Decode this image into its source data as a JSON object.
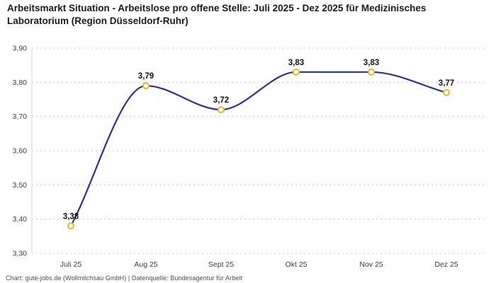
{
  "footer": {
    "text": "Chart: gute-jobs.de (Wollmilchsau GmbH) | Datenquelle: Bundesagentur für Arbeit"
  },
  "chart_data": {
    "type": "line",
    "title": "Arbeitsmarkt Situation - Arbeitslose pro offene Stelle: Juli 2025 - Dez 2025 für Medizinisches Laboratorium (Region Düsseldorf-Ruhr)",
    "categories": [
      "Juli 25",
      "Aug 25",
      "Sept 25",
      "Okt 25",
      "Nov 25",
      "Dez 25"
    ],
    "values": [
      3.38,
      3.79,
      3.72,
      3.83,
      3.83,
      3.77
    ],
    "value_labels": [
      "3,38",
      "3,79",
      "3,72",
      "3,83",
      "3,83",
      "3,77"
    ],
    "ylim": [
      3.3,
      3.9
    ],
    "yticks": [
      3.3,
      3.4,
      3.5,
      3.6,
      3.7,
      3.8,
      3.9
    ],
    "ytick_labels": [
      "3,30",
      "3,40",
      "3,50",
      "3,60",
      "3,70",
      "3,80",
      "3,90"
    ],
    "xlabel": "",
    "ylabel": "",
    "legend": "none",
    "grid": "horizontal-dashed",
    "colors": {
      "line": "#27348b",
      "marker_stroke": "#f0b429",
      "marker_fill": "#ffffff",
      "grid": "#c9c9c9",
      "axis": "#d8d8d8",
      "label": "#111111"
    }
  }
}
